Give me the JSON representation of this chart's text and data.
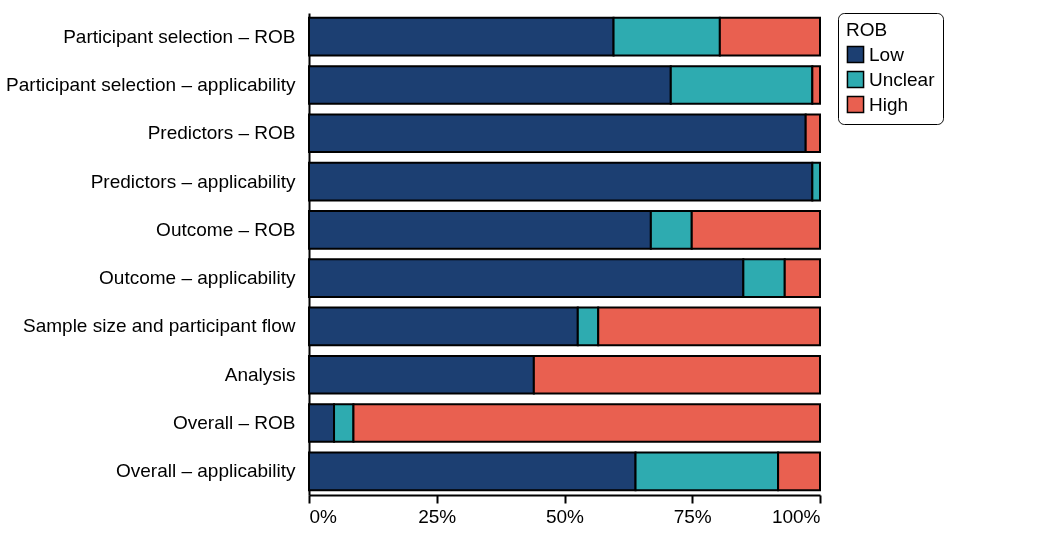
{
  "chart_data": {
    "type": "bar",
    "orientation": "horizontal",
    "stacked": true,
    "legend_title": "ROB",
    "legend": "right",
    "categories": [
      "Participant selection – ROB",
      "Participant selection – applicability",
      "Predictors – ROB",
      "Predictors – applicability",
      "Outcome – ROB",
      "Outcome – applicability",
      "Sample size and participant flow",
      "Analysis",
      "Overall – ROB",
      "Overall – applicability"
    ],
    "series": [
      {
        "name": "Low",
        "color": "#1c3f72",
        "values": [
          59.6,
          70.8,
          97.2,
          98.5,
          66.9,
          85.0,
          52.6,
          44.0,
          4.9,
          63.9
        ]
      },
      {
        "name": "Unclear",
        "color": "#2eabb0",
        "values": [
          20.8,
          27.7,
          null,
          1.5,
          8.0,
          8.1,
          4.0,
          null,
          3.8,
          27.9
        ]
      },
      {
        "name": "High",
        "color": "#e96050",
        "values": [
          19.6,
          1.5,
          2.8,
          null,
          25.1,
          6.9,
          43.4,
          56.0,
          91.3,
          8.2
        ]
      }
    ],
    "xlim": [
      0,
      100
    ],
    "xticks": [
      {
        "value": 0,
        "label": "0%"
      },
      {
        "value": 25,
        "label": "25%"
      },
      {
        "value": 50,
        "label": "50%"
      },
      {
        "value": 75,
        "label": "75%"
      },
      {
        "value": 100,
        "label": "100%"
      }
    ],
    "grid": false
  }
}
